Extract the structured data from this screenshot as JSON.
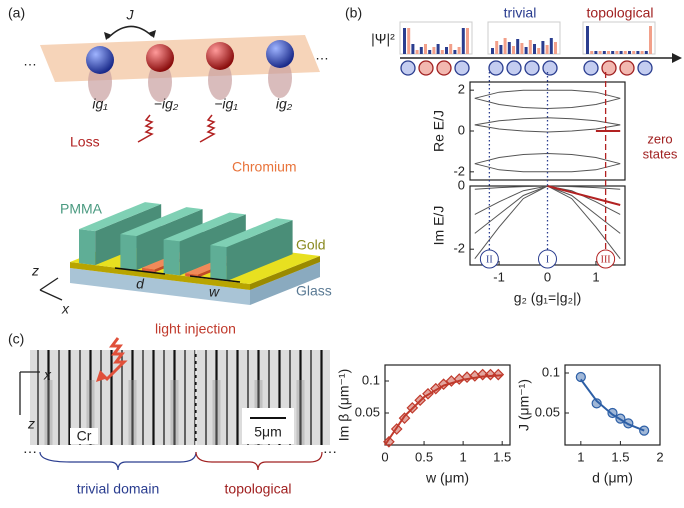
{
  "panel_labels": [
    "(a)",
    "(b)",
    "(c)"
  ],
  "panel_a": {
    "coupling": "J",
    "ellipsis": "…",
    "gains": [
      "ig₁",
      "−ig₂",
      "−ig₁",
      "ig₂"
    ],
    "loss": "Loss",
    "chromium": "Chromium",
    "pmma": "PMMA",
    "gold": "Gold",
    "glass": "Glass",
    "d": "d",
    "w": "w",
    "axis_z": "z",
    "axis_x": "x"
  },
  "panel_b": {
    "psi": "|Ψ|²",
    "trivial": "trivial",
    "topological": "topological",
    "zero_states": [
      "zero",
      "states"
    ]
  },
  "panel_c": {
    "light_injection": "light injection",
    "axis_x": "x",
    "axis_z": "z",
    "cr": "Cr",
    "scale": "5μm",
    "trivial_domain": "trivial domain",
    "topological": "topological",
    "ellipsis": "⋯"
  },
  "chart_data": [
    {
      "type": "line",
      "ylabel": "Re E/J",
      "x": [
        -1.5,
        -1,
        -0.5,
        0,
        0.5,
        1,
        1.5
      ],
      "xlim": [
        -1.6,
        1.6
      ],
      "ylim": [
        -2.4,
        2.4
      ],
      "yticks": [
        -2,
        0,
        2
      ],
      "series": [
        {
          "color": "#555555",
          "values": [
            1.6,
            1.9,
            2.0,
            2.0,
            2.0,
            1.9,
            1.6
          ]
        },
        {
          "color": "#555555",
          "values": [
            1.6,
            1.3,
            1.15,
            1.1,
            1.15,
            1.3,
            1.6
          ]
        },
        {
          "color": "#555555",
          "values": [
            0.3,
            0.5,
            0.6,
            0.65,
            0.6,
            0.5,
            0.3
          ]
        },
        {
          "color": "#555555",
          "values": [
            0.3,
            0.1,
            0.0,
            -0.05,
            0.0,
            0.1,
            0.3
          ]
        },
        {
          "color": "#555555",
          "values": [
            -1.6,
            -1.3,
            -1.15,
            -1.1,
            -1.15,
            -1.3,
            -1.6
          ]
        },
        {
          "color": "#555555",
          "values": [
            -1.6,
            -1.9,
            -2.0,
            -2.0,
            -2.0,
            -1.9,
            -1.6
          ]
        },
        {
          "color": "#b22222",
          "values": [
            null,
            null,
            null,
            null,
            null,
            0,
            0
          ]
        }
      ]
    },
    {
      "type": "line",
      "ylabel": "Im E/J",
      "xlabel": "g₂ (g₁=|g₂|)",
      "x": [
        -1.5,
        -1,
        -0.5,
        0,
        0.5,
        1,
        1.5
      ],
      "xlim": [
        -1.6,
        1.6
      ],
      "xticks": [
        -1,
        0,
        1
      ],
      "ylim": [
        -2.5,
        0
      ],
      "yticks": [
        -2,
        0
      ],
      "series": [
        {
          "color": "#555555",
          "values": [
            -2.3,
            -1.3,
            -0.4,
            0,
            -0.4,
            -1.3,
            -2.3
          ]
        },
        {
          "color": "#555555",
          "values": [
            -1.5,
            -0.9,
            -0.3,
            0,
            -0.3,
            -0.9,
            -1.5
          ]
        },
        {
          "color": "#555555",
          "values": [
            -0.9,
            -0.5,
            -0.15,
            0,
            -0.15,
            -0.5,
            -0.9
          ]
        },
        {
          "color": "#555555",
          "values": [
            -0.1,
            -0.05,
            -0.02,
            0,
            -0.02,
            -0.05,
            -0.1
          ]
        },
        {
          "color": "#b22222",
          "values": [
            null,
            null,
            null,
            0,
            -0.2,
            -0.4,
            -0.6
          ]
        }
      ],
      "markers": [
        {
          "x": -1.2,
          "label": "II",
          "color": "#2a3d8f",
          "dash": "dotted"
        },
        {
          "x": 0,
          "label": "I",
          "color": "#2a3d8f",
          "dash": "dotted"
        },
        {
          "x": 1.2,
          "label": "III",
          "color": "#b22222",
          "dash": "dashed"
        }
      ]
    },
    {
      "type": "scatter",
      "ylabel": "Im β (μm⁻¹)",
      "xlabel": "w (μm)",
      "xlim": [
        0,
        1.6
      ],
      "xticks": [
        0,
        0.5,
        1,
        1.5
      ],
      "ylim": [
        0,
        0.125
      ],
      "yticks": [
        0.05,
        0.1
      ],
      "series": [
        {
          "marker": "diamond",
          "color": "#c0392b",
          "x": [
            0.05,
            0.15,
            0.25,
            0.35,
            0.45,
            0.55,
            0.65,
            0.75,
            0.85,
            0.95,
            1.05,
            1.15,
            1.25,
            1.35,
            1.45
          ],
          "values": [
            0.005,
            0.025,
            0.042,
            0.058,
            0.07,
            0.08,
            0.088,
            0.095,
            0.1,
            0.103,
            0.106,
            0.108,
            0.11,
            0.11,
            0.11
          ]
        },
        {
          "color": "#c0392b",
          "x": [
            0,
            0.25,
            0.5,
            0.75,
            1,
            1.25,
            1.5
          ],
          "values": [
            0,
            0.045,
            0.075,
            0.093,
            0.102,
            0.107,
            0.109
          ]
        }
      ]
    },
    {
      "type": "scatter",
      "ylabel": "J (μm⁻¹)",
      "xlabel": "d (μm)",
      "xlim": [
        0.8,
        2
      ],
      "xticks": [
        1,
        1.5,
        2
      ],
      "ylim": [
        0.01,
        0.11
      ],
      "yticks": [
        0.05,
        0.1
      ],
      "series": [
        {
          "marker": "circle",
          "color": "#2d5fa6",
          "x": [
            1,
            1.2,
            1.4,
            1.5,
            1.6,
            1.8
          ],
          "values": [
            0.095,
            0.062,
            0.05,
            0.043,
            0.037,
            0.028
          ]
        },
        {
          "color": "#2d5fa6",
          "x": [
            1,
            1.2,
            1.4,
            1.6,
            1.8
          ],
          "values": [
            0.092,
            0.065,
            0.048,
            0.036,
            0.028
          ]
        }
      ]
    }
  ]
}
